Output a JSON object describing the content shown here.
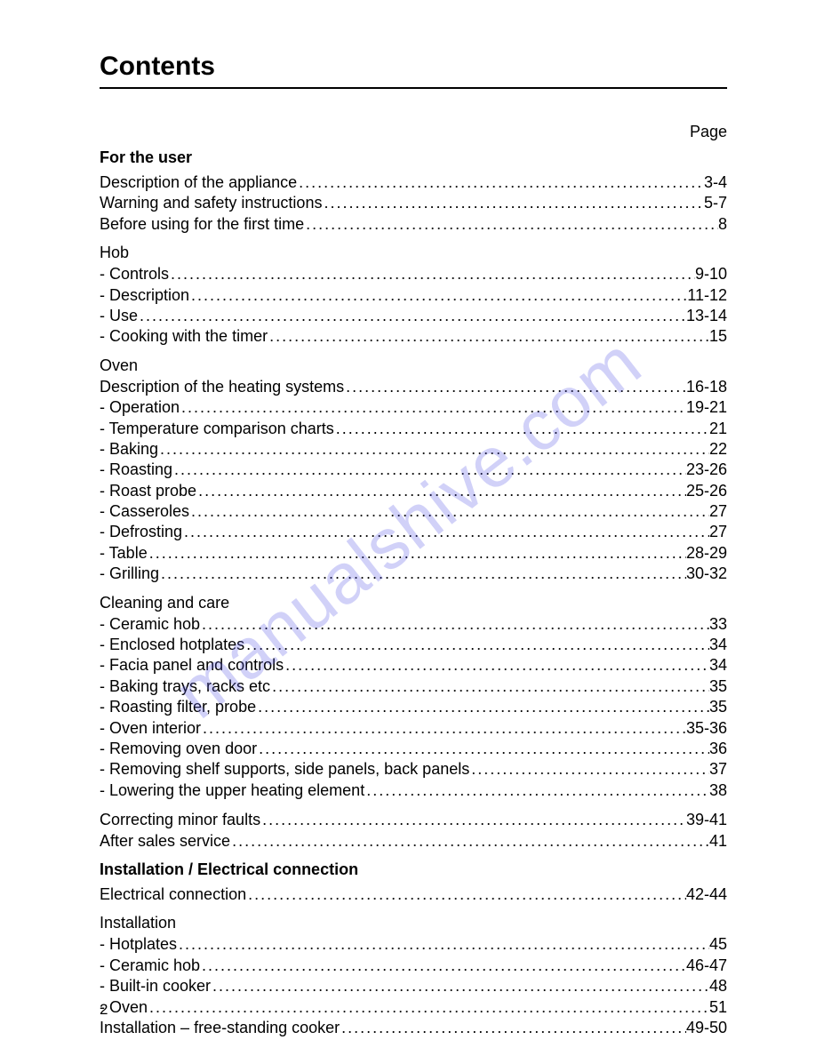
{
  "title": "Contents",
  "pageHeader": "Page",
  "pageNumber": "2",
  "watermark": "manualshive.com",
  "sections": [
    {
      "heading": "For the user",
      "headingBold": true,
      "items": [
        {
          "label": "Description of the appliance",
          "page": "3-4"
        },
        {
          "label": "Warning and safety instructions",
          "page": "5-7"
        },
        {
          "label": "Before using for the first time",
          "page": "8"
        }
      ]
    },
    {
      "heading": "Hob",
      "headingBold": false,
      "items": [
        {
          "label": "- Controls",
          "page": "9-10"
        },
        {
          "label": "- Description",
          "page": "11-12"
        },
        {
          "label": "- Use",
          "page": "13-14"
        },
        {
          "label": "- Cooking with the timer",
          "page": "15"
        }
      ]
    },
    {
      "heading": "Oven",
      "headingBold": false,
      "items": [
        {
          "label": "Description of the heating systems",
          "page": "16-18"
        },
        {
          "label": "- Operation",
          "page": "19-21"
        },
        {
          "label": "- Temperature comparison charts",
          "page": "21"
        },
        {
          "label": "- Baking",
          "page": "22"
        },
        {
          "label": "- Roasting",
          "page": "23-26"
        },
        {
          "label": "- Roast probe",
          "page": "25-26"
        },
        {
          "label": "- Casseroles",
          "page": "27"
        },
        {
          "label": "- Defrosting",
          "page": "27"
        },
        {
          "label": "- Table",
          "page": "28-29"
        },
        {
          "label": "- Grilling",
          "page": "30-32"
        }
      ]
    },
    {
      "heading": "Cleaning and care",
      "headingBold": false,
      "items": [
        {
          "label": "- Ceramic hob",
          "page": "33"
        },
        {
          "label": "- Enclosed hotplates",
          "page": "34"
        },
        {
          "label": "- Facia panel and controls",
          "page": "34"
        },
        {
          "label": "- Baking trays, racks etc",
          "page": "35"
        },
        {
          "label": "- Roasting filter, probe",
          "page": "35"
        },
        {
          "label": "- Oven interior",
          "page": "35-36"
        },
        {
          "label": "- Removing oven door",
          "page": "36"
        },
        {
          "label": "- Removing shelf supports, side panels, back panels",
          "page": "37"
        },
        {
          "label": "- Lowering the upper heating element",
          "page": "38"
        }
      ]
    },
    {
      "heading": null,
      "headingBold": false,
      "items": [
        {
          "label": "Correcting minor faults",
          "page": "39-41"
        },
        {
          "label": "After sales service",
          "page": "41"
        }
      ]
    },
    {
      "heading": "Installation / Electrical connection",
      "headingBold": true,
      "items": [
        {
          "label": "Electrical connection",
          "page": "42-44"
        }
      ]
    },
    {
      "heading": "Installation",
      "headingBold": false,
      "items": [
        {
          "label": "- Hotplates",
          "page": "45"
        },
        {
          "label": "- Ceramic hob",
          "page": "46-47"
        },
        {
          "label": "- Built-in cooker",
          "page": "48"
        },
        {
          "label": "- Oven",
          "page": "51"
        },
        {
          "label": "Installation – free-standing cooker",
          "page": "49-50"
        }
      ]
    }
  ]
}
